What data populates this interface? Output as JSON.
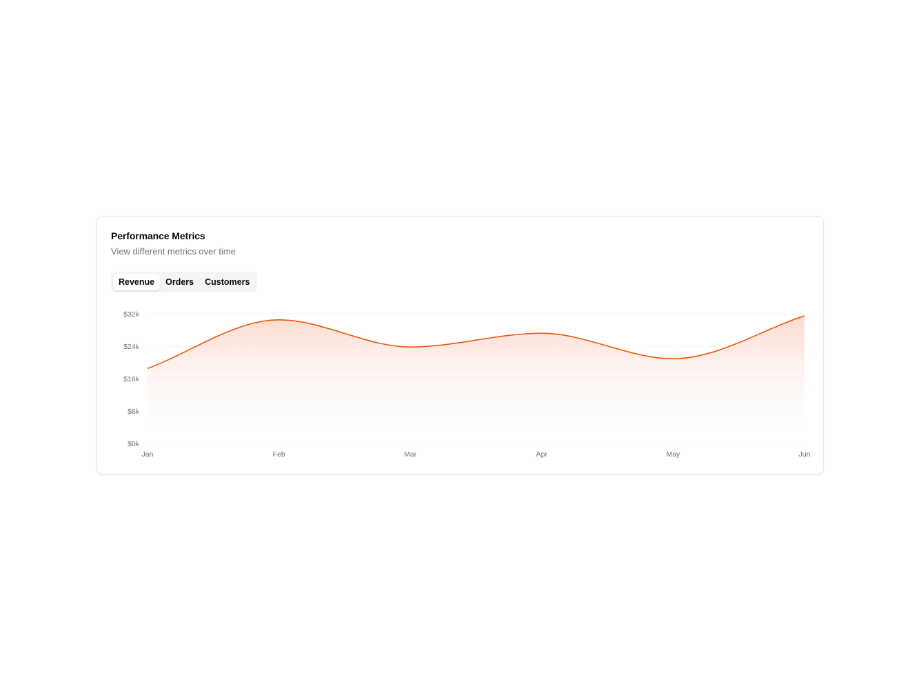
{
  "card": {
    "title": "Performance Metrics",
    "subtitle": "View different metrics over time"
  },
  "tabs": [
    {
      "label": "Revenue",
      "active": true
    },
    {
      "label": "Orders",
      "active": false
    },
    {
      "label": "Customers",
      "active": false
    }
  ],
  "colors": {
    "accent": "#e8590c",
    "fill_top": "#fbd8cb",
    "grid": "#ececef"
  },
  "chart_data": {
    "type": "area",
    "x": [
      "Jan",
      "Feb",
      "Mar",
      "Apr",
      "May",
      "Jun"
    ],
    "series": [
      {
        "values": [
          18500,
          30500,
          23800,
          27200,
          20900,
          31500
        ]
      }
    ],
    "y_ticks": [
      "$0k",
      "$8k",
      "$16k",
      "$24k",
      "$32k"
    ],
    "y_tick_values": [
      0,
      8000,
      16000,
      24000,
      32000
    ],
    "ylim": [
      0,
      32000
    ],
    "grid": true,
    "curve": "smooth"
  }
}
